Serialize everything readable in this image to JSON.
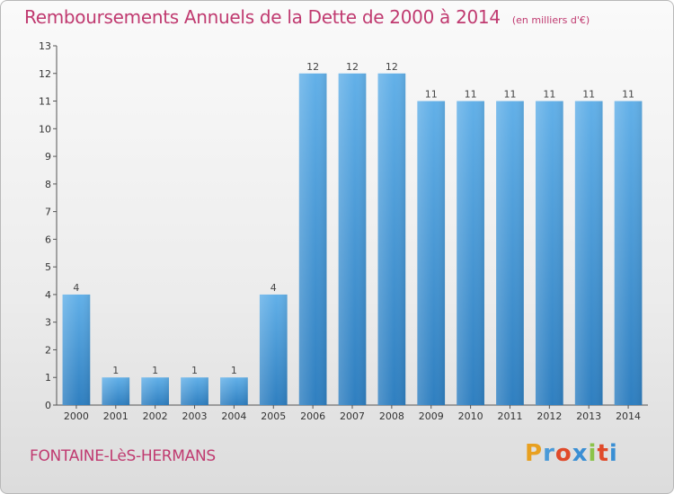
{
  "title": "Remboursements Annuels de la Dette de 2000 à 2014",
  "unit": "(en milliers d'€)",
  "commune": "FONTAINE-LèS-HERMANS",
  "logo": {
    "letters": [
      "P",
      "r",
      "o",
      "x",
      "i",
      "t",
      "i"
    ],
    "colors": [
      "#e8a020",
      "#4a9ad8",
      "#e04a2a",
      "#3a8fd4",
      "#8bc34a",
      "#e04a2a",
      "#3a8fd4"
    ]
  },
  "colors": {
    "bar": "#4a9fdd",
    "bar_light": "#62b0e8",
    "bar_dark": "#2f7fc0",
    "accent": "#c03a70"
  },
  "chart_data": {
    "type": "bar",
    "categories": [
      "2000",
      "2001",
      "2002",
      "2003",
      "2004",
      "2005",
      "2006",
      "2007",
      "2008",
      "2009",
      "2010",
      "2011",
      "2012",
      "2013",
      "2014"
    ],
    "values": [
      4,
      1,
      1,
      1,
      1,
      4,
      12,
      12,
      12,
      11,
      11,
      11,
      11,
      11,
      11
    ],
    "data_labels": [
      "4",
      "1",
      "1",
      "1",
      "1",
      "4",
      "12",
      "12",
      "12",
      "11",
      "11",
      "11",
      "11",
      "11",
      "11"
    ],
    "yticks": [
      "0",
      "1",
      "2",
      "3",
      "4",
      "5",
      "6",
      "7",
      "8",
      "9",
      "10",
      "11",
      "12",
      "13"
    ],
    "ylim": [
      0,
      13
    ],
    "grid": false
  }
}
